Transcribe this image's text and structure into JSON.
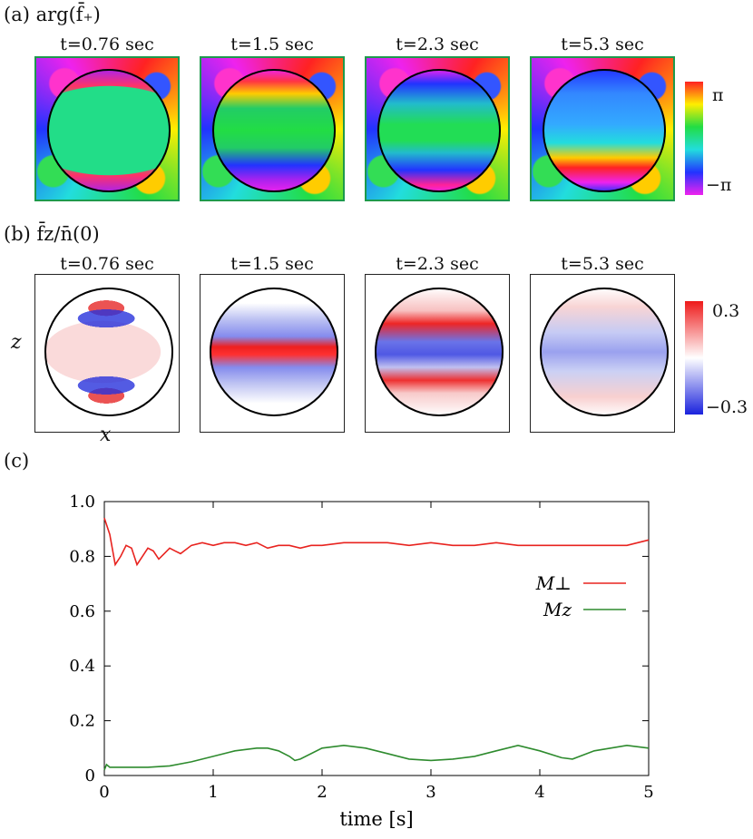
{
  "panel_a": {
    "label": "(a)",
    "quantity": "arg(f̄₊)",
    "titles": [
      "t=0.76 sec",
      "t=1.5 sec",
      "t=2.3 sec",
      "t=5.3 sec"
    ],
    "colorbar": {
      "top": "π",
      "bottom": "−π"
    }
  },
  "panel_b": {
    "label": "(b)",
    "quantity": "f̄z/n̄(0)",
    "titles": [
      "t=0.76 sec",
      "t=1.5 sec",
      "t=2.3 sec",
      "t=5.3 sec"
    ],
    "colorbar": {
      "top": "0.3",
      "bottom": "−0.3"
    },
    "xlabel": "x",
    "zlabel": "z"
  },
  "panel_c": {
    "label": "(c)"
  },
  "chart_data": {
    "type": "line",
    "xlabel": "time [s]",
    "ylabel": "",
    "xlim": [
      0,
      5
    ],
    "ylim": [
      0,
      1.0
    ],
    "xticks": [
      "0",
      "1",
      "2",
      "3",
      "4",
      "5"
    ],
    "yticks": [
      "0",
      "0.2",
      "0.4",
      "0.6",
      "0.8",
      "1.0"
    ],
    "legend_position": "right",
    "series": [
      {
        "name": "M⊥",
        "color": "#e8231f",
        "x": [
          0,
          0.05,
          0.1,
          0.15,
          0.2,
          0.25,
          0.3,
          0.35,
          0.4,
          0.45,
          0.5,
          0.55,
          0.6,
          0.65,
          0.7,
          0.8,
          0.9,
          1.0,
          1.1,
          1.2,
          1.3,
          1.4,
          1.5,
          1.6,
          1.7,
          1.8,
          1.9,
          2.0,
          2.2,
          2.4,
          2.6,
          2.8,
          3.0,
          3.2,
          3.4,
          3.6,
          3.8,
          4.0,
          4.2,
          4.4,
          4.6,
          4.8,
          5.0
        ],
        "values": [
          0.94,
          0.88,
          0.77,
          0.8,
          0.84,
          0.83,
          0.77,
          0.8,
          0.83,
          0.82,
          0.79,
          0.81,
          0.83,
          0.82,
          0.81,
          0.84,
          0.85,
          0.84,
          0.85,
          0.85,
          0.84,
          0.85,
          0.83,
          0.84,
          0.84,
          0.83,
          0.84,
          0.84,
          0.85,
          0.85,
          0.85,
          0.84,
          0.85,
          0.84,
          0.84,
          0.85,
          0.84,
          0.84,
          0.84,
          0.84,
          0.84,
          0.84,
          0.86
        ]
      },
      {
        "name": "Mz",
        "color": "#2e8b2e",
        "x": [
          0,
          0.02,
          0.05,
          0.2,
          0.4,
          0.6,
          0.8,
          1.0,
          1.2,
          1.4,
          1.5,
          1.6,
          1.7,
          1.75,
          1.8,
          2.0,
          2.2,
          2.4,
          2.6,
          2.8,
          3.0,
          3.2,
          3.4,
          3.6,
          3.8,
          4.0,
          4.2,
          4.3,
          4.5,
          4.8,
          5.0
        ],
        "values": [
          0.02,
          0.04,
          0.03,
          0.03,
          0.03,
          0.035,
          0.05,
          0.07,
          0.09,
          0.1,
          0.1,
          0.09,
          0.07,
          0.055,
          0.06,
          0.1,
          0.11,
          0.1,
          0.08,
          0.06,
          0.055,
          0.06,
          0.07,
          0.09,
          0.11,
          0.09,
          0.065,
          0.06,
          0.09,
          0.11,
          0.1
        ]
      }
    ]
  },
  "colors": {
    "phase_low": "#ee22ee",
    "phase_high": "#ff2222",
    "diverging_pos": "#e8231f",
    "diverging_neg": "#1e2bd6"
  }
}
